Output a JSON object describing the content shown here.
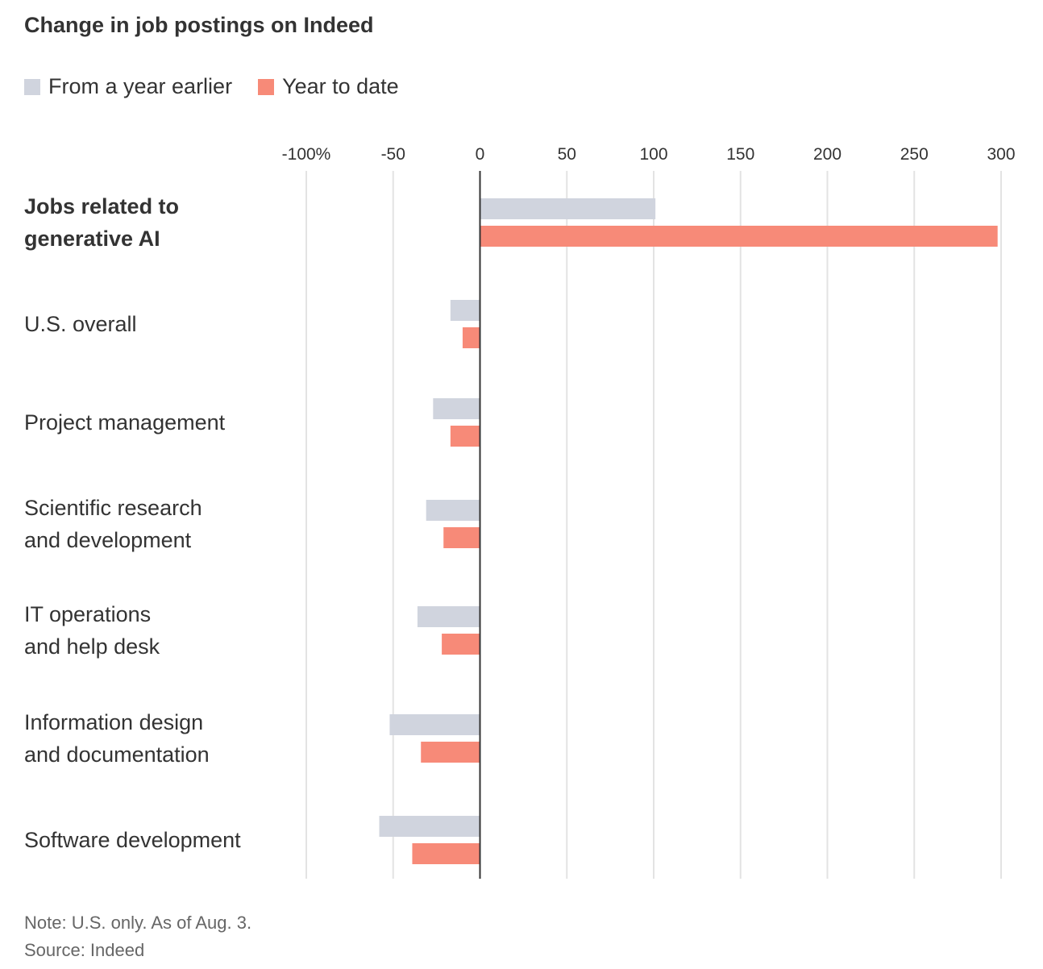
{
  "chart_data": {
    "type": "bar",
    "orientation": "horizontal",
    "title": "Change in job postings on Indeed",
    "categories": [
      [
        "Jobs related to",
        "generative AI"
      ],
      [
        "U.S. overall"
      ],
      [
        "Project management"
      ],
      [
        "Scientific research",
        "and development"
      ],
      [
        "IT operations",
        "and help desk"
      ],
      [
        "Information design",
        "and documentation"
      ],
      [
        "Software development"
      ]
    ],
    "highlight_index": 0,
    "series": [
      {
        "name": "From a year earlier",
        "color": "#d0d4de",
        "values": [
          101,
          -17,
          -27,
          -31,
          -36,
          -52,
          -58
        ]
      },
      {
        "name": "Year to date",
        "color": "#f78a78",
        "values": [
          298,
          -10,
          -17,
          -21,
          -22,
          -34,
          -39
        ]
      }
    ],
    "xlim": [
      -100,
      300
    ],
    "ticks": [
      -100,
      -50,
      0,
      50,
      100,
      150,
      200,
      250,
      300
    ],
    "tick_labels": [
      "-100%",
      "-50",
      "0",
      "50",
      "100",
      "150",
      "200",
      "250",
      "300"
    ],
    "grid": true,
    "legend_position": "top-left"
  },
  "footer": {
    "note": "Note: U.S. only. As of Aug. 3.",
    "source": "Source: Indeed"
  }
}
